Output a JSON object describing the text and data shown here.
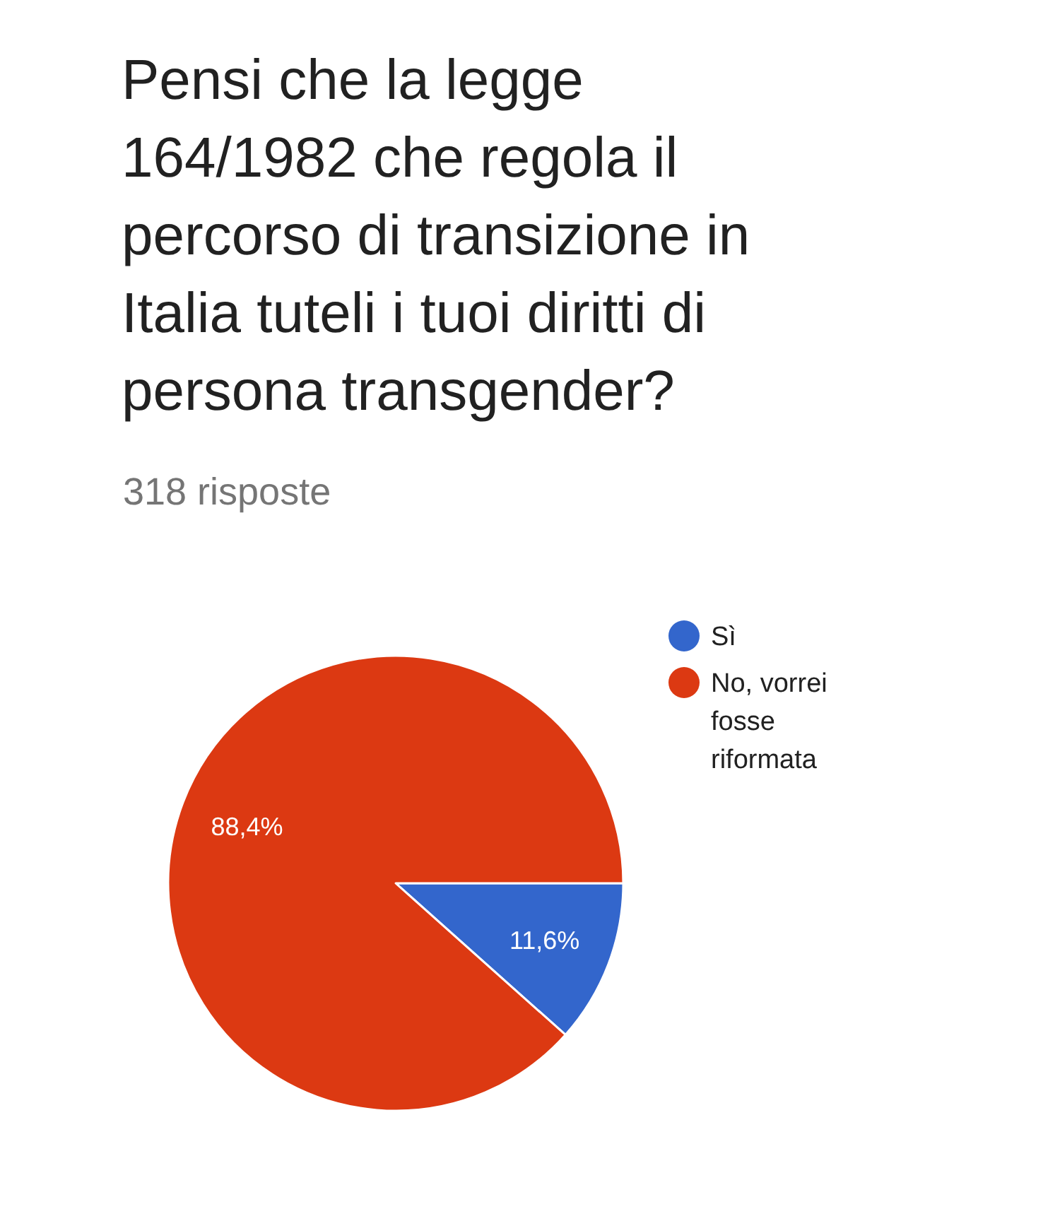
{
  "chart_data": {
    "type": "pie",
    "title": "Pensi che la legge 164/1982 che regola il percorso di transizione in Italia tuteli i tuoi diritti di persona transgender?",
    "subtitle": "318 risposte",
    "categories": [
      "Sì",
      "No, vorrei fosse riformata"
    ],
    "values": [
      11.6,
      88.4
    ],
    "colors": [
      "#3366cc",
      "#dc3912"
    ],
    "value_labels": [
      "11,6%",
      "88,4%"
    ],
    "legend": "top right"
  }
}
